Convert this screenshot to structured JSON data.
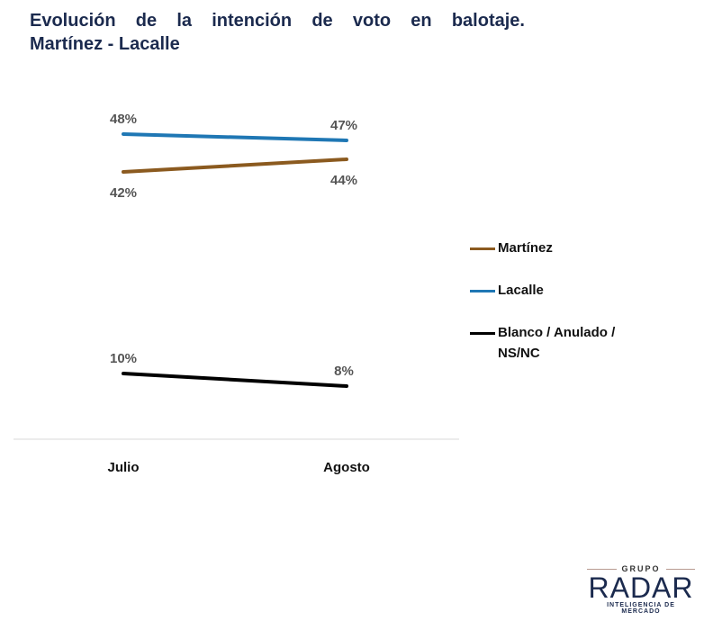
{
  "chart_data": {
    "type": "line",
    "title": "Evolución de la intención de voto en balotaje.",
    "subtitle": "Martínez - Lacalle",
    "categories": [
      "Julio",
      "Agosto"
    ],
    "series": [
      {
        "name": "Martínez",
        "values": [
          42,
          44
        ],
        "labels": [
          "42%",
          "44%"
        ],
        "color": "#8b5a1f"
      },
      {
        "name": "Lacalle",
        "values": [
          48,
          47
        ],
        "labels": [
          "48%",
          "47%"
        ],
        "color": "#1f77b4"
      },
      {
        "name": "Blanco / Anulado / NS/NC",
        "values": [
          10,
          8
        ],
        "labels": [
          "10%",
          "8%"
        ],
        "color": "#000000"
      }
    ],
    "ylim": [
      0,
      50
    ],
    "grid": false,
    "legend_position": "right"
  },
  "logo": {
    "top": "GRUPO",
    "main": "RADAR",
    "bottom": "INTELIGENCIA DE MERCADO"
  }
}
